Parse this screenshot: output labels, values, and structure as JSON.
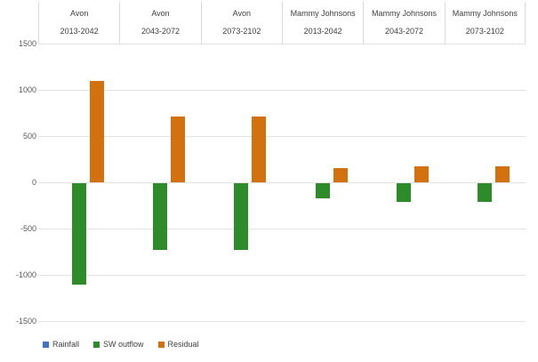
{
  "chart_data": {
    "type": "bar",
    "title": "",
    "groups": [
      {
        "site": "Avon",
        "period": "2013-2042"
      },
      {
        "site": "Avon",
        "period": "2043-2072"
      },
      {
        "site": "Avon",
        "period": "2073-2102"
      },
      {
        "site": "Mammy Johnsons",
        "period": "2013-2042"
      },
      {
        "site": "Mammy Johnsons",
        "period": "2043-2072"
      },
      {
        "site": "Mammy Johnsons",
        "period": "2073-2102"
      }
    ],
    "series": [
      {
        "name": "Rainfall",
        "color": "#4472C4",
        "values": [
          0,
          0,
          0,
          0,
          0,
          0
        ]
      },
      {
        "name": "SW outflow",
        "color": "#2E8B2A",
        "values": [
          -1100,
          -720,
          -720,
          -160,
          -200,
          -200
        ]
      },
      {
        "name": "Residual",
        "color": "#D2710D",
        "values": [
          1100,
          715,
          715,
          155,
          175,
          175
        ]
      }
    ],
    "y_axis": {
      "min": -1500,
      "max": 1500,
      "step": 500,
      "tick_values": [
        1500,
        1000,
        500,
        0,
        -500,
        -1000,
        -1500
      ],
      "tick_labels": [
        "1500",
        "1000",
        "500",
        "0",
        "-500",
        "-1000",
        "-1500"
      ]
    },
    "legend": {
      "position": "bottom-left",
      "entries": [
        "Rainfall",
        "SW outflow",
        "Residual"
      ]
    },
    "grid": true
  },
  "colors": {
    "background": "#FFFFFF",
    "gridline": "#E2E2E2",
    "header_border": "#D9D9D9",
    "tick_text": "#595959",
    "header_text": "#404040",
    "legend_text": "#404040"
  }
}
